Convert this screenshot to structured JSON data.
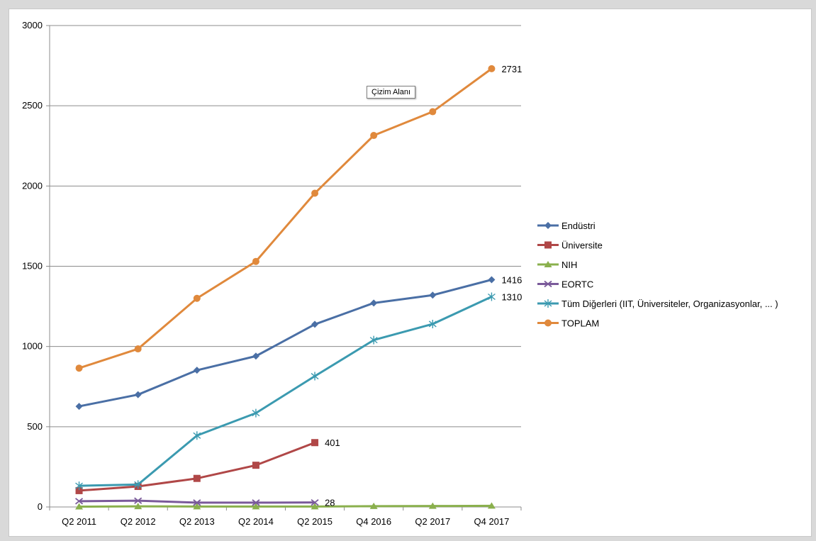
{
  "chart_data": {
    "type": "line",
    "title": "",
    "xlabel": "",
    "ylabel": "",
    "ylim": [
      0,
      3000
    ],
    "yticks": [
      0,
      500,
      1000,
      1500,
      2000,
      2500,
      3000
    ],
    "grid": true,
    "legend_position": "right",
    "categories": [
      "Q2 2011",
      "Q2 2012",
      "Q2 2013",
      "Q2 2014",
      "Q2 2015",
      "Q4 2016",
      "Q2 2017",
      "Q4  2017"
    ],
    "series": [
      {
        "name": "Endüstri",
        "color": "#4a6fa5",
        "marker": "diamond",
        "values": [
          627,
          700,
          852,
          940,
          1138,
          1271,
          1320,
          1416
        ]
      },
      {
        "name": "Üniversite",
        "color": "#b04747",
        "marker": "square",
        "values": [
          102,
          128,
          178,
          260,
          401,
          null,
          null,
          null
        ]
      },
      {
        "name": "NIH",
        "color": "#8ab04d",
        "marker": "triangle",
        "values": [
          2,
          4,
          3,
          3,
          3,
          5,
          6,
          7
        ]
      },
      {
        "name": "EORTC",
        "color": "#7a5a9a",
        "marker": "x",
        "values": [
          36,
          39,
          27,
          27,
          28,
          null,
          null,
          null
        ]
      },
      {
        "name": "Tüm Diğerleri (IIT, Üniversiteler, Organizasyonlar, ... )",
        "color": "#3b9ab0",
        "marker": "star",
        "values": [
          132,
          140,
          445,
          585,
          815,
          1040,
          1140,
          1310
        ]
      },
      {
        "name": "TOPLAM",
        "color": "#e0893c",
        "marker": "circle",
        "values": [
          865,
          985,
          1300,
          1530,
          1955,
          2315,
          2463,
          2731
        ]
      }
    ],
    "data_labels": [
      {
        "series": "TOPLAM",
        "index": 7,
        "text": "2731"
      },
      {
        "series": "Endüstri",
        "index": 7,
        "text": "1416"
      },
      {
        "series": "Tüm Diğerleri (IIT, Üniversiteler, Organizasyonlar, ... )",
        "index": 7,
        "text": "1310"
      },
      {
        "series": "Üniversite",
        "index": 4,
        "text": "401"
      },
      {
        "series": "EORTC",
        "index": 4,
        "text": "28"
      }
    ]
  },
  "tooltip": {
    "text": "Çizim Alanı"
  }
}
